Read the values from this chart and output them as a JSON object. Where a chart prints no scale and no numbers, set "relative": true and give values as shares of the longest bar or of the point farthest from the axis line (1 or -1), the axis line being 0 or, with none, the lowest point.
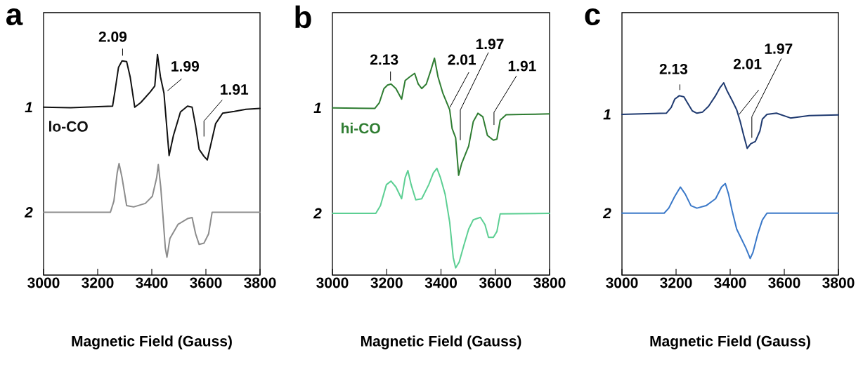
{
  "chart_data": [
    {
      "type": "line",
      "title": "a",
      "xlabel": "Magnetic Field (Gauss)",
      "xlim": [
        3000,
        3800
      ],
      "xticks": [
        3000,
        3200,
        3400,
        3600,
        3800
      ],
      "relative": true,
      "tick_labels": "x",
      "series": [
        {
          "name": "1",
          "color": "#111111",
          "x": [
            3000,
            3100,
            3255,
            3264,
            3277,
            3290,
            3307,
            3320,
            3337,
            3359,
            3394,
            3411,
            3421,
            3432,
            3445,
            3464,
            3480,
            3506,
            3532,
            3549,
            3562,
            3575,
            3593,
            3605,
            3618,
            3636,
            3662,
            3705,
            3748,
            3800
          ],
          "values": [
            0.761,
            0.759,
            0.766,
            0.835,
            0.942,
            0.971,
            0.968,
            0.899,
            0.761,
            0.782,
            0.83,
            0.857,
            1.0,
            0.899,
            0.825,
            0.542,
            0.633,
            0.74,
            0.766,
            0.761,
            0.676,
            0.57,
            0.538,
            0.522,
            0.591,
            0.687,
            0.734,
            0.742,
            0.752,
            0.756
          ]
        },
        {
          "name": "2",
          "color": "#8c8c8c",
          "x": [
            3000,
            3247,
            3260,
            3272,
            3279,
            3290,
            3307,
            3333,
            3376,
            3402,
            3418,
            3424,
            3433,
            3441,
            3450,
            3456,
            3467,
            3497,
            3532,
            3549,
            3562,
            3575,
            3593,
            3610,
            3623,
            3800
          ],
          "values": [
            0.285,
            0.285,
            0.336,
            0.463,
            0.506,
            0.442,
            0.315,
            0.309,
            0.325,
            0.357,
            0.442,
            0.501,
            0.4,
            0.272,
            0.123,
            0.081,
            0.166,
            0.23,
            0.256,
            0.261,
            0.187,
            0.139,
            0.145,
            0.187,
            0.285,
            0.285
          ]
        }
      ],
      "annotations": [
        "2.09",
        "1.99",
        "1.91",
        "lo-CO"
      ]
    },
    {
      "type": "line",
      "title": "b",
      "xlabel": "Magnetic Field (Gauss)",
      "xlim": [
        3000,
        3800
      ],
      "xticks": [
        3000,
        3200,
        3400,
        3600,
        3800
      ],
      "relative": true,
      "tick_labels": "x",
      "series": [
        {
          "name": "1",
          "color": "#2f7d32",
          "x": [
            3000,
            3156,
            3173,
            3190,
            3203,
            3216,
            3234,
            3255,
            3268,
            3285,
            3303,
            3316,
            3329,
            3346,
            3363,
            3376,
            3389,
            3407,
            3432,
            3441,
            3454,
            3465,
            3476,
            3502,
            3519,
            3536,
            3554,
            3571,
            3593,
            3606,
            3618,
            3640,
            3701,
            3800
          ],
          "values": [
            0.771,
            0.768,
            0.795,
            0.86,
            0.876,
            0.881,
            0.86,
            0.811,
            0.897,
            0.914,
            0.93,
            0.881,
            0.86,
            0.881,
            0.946,
            1.0,
            0.914,
            0.838,
            0.762,
            0.676,
            0.633,
            0.46,
            0.514,
            0.595,
            0.708,
            0.746,
            0.73,
            0.644,
            0.622,
            0.627,
            0.714,
            0.739,
            0.741,
            0.743
          ]
        },
        {
          "name": "2",
          "color": "#5ccf93",
          "x": [
            3000,
            3160,
            3177,
            3199,
            3216,
            3234,
            3255,
            3268,
            3278,
            3290,
            3307,
            3329,
            3355,
            3372,
            3385,
            3398,
            3415,
            3432,
            3445,
            3454,
            3467,
            3484,
            3502,
            3519,
            3545,
            3562,
            3575,
            3593,
            3606,
            3618,
            3800
          ],
          "values": [
            0.285,
            0.285,
            0.32,
            0.417,
            0.433,
            0.406,
            0.352,
            0.449,
            0.482,
            0.417,
            0.347,
            0.352,
            0.417,
            0.471,
            0.492,
            0.449,
            0.374,
            0.244,
            0.082,
            0.033,
            0.06,
            0.136,
            0.212,
            0.255,
            0.266,
            0.233,
            0.174,
            0.174,
            0.201,
            0.282,
            0.285
          ]
        }
      ],
      "annotations": [
        "2.13",
        "2.01",
        "1.97",
        "1.91",
        "hi-CO"
      ]
    },
    {
      "type": "line",
      "title": "c",
      "xlabel": "Magnetic Field (Gauss)",
      "xlim": [
        3000,
        3800
      ],
      "xticks": [
        3000,
        3200,
        3400,
        3600,
        3800
      ],
      "relative": true,
      "tick_labels": "x",
      "series": [
        {
          "name": "1",
          "color": "#1f3a70",
          "x": [
            3000,
            3164,
            3182,
            3195,
            3212,
            3229,
            3242,
            3260,
            3277,
            3298,
            3320,
            3346,
            3363,
            3376,
            3389,
            3407,
            3424,
            3437,
            3450,
            3463,
            3476,
            3493,
            3510,
            3519,
            3536,
            3571,
            3623,
            3692,
            3800
          ],
          "values": [
            0.836,
            0.842,
            0.872,
            0.915,
            0.933,
            0.927,
            0.896,
            0.854,
            0.842,
            0.848,
            0.878,
            0.933,
            0.976,
            1.0,
            0.957,
            0.909,
            0.86,
            0.799,
            0.726,
            0.659,
            0.683,
            0.695,
            0.75,
            0.811,
            0.836,
            0.842,
            0.817,
            0.829,
            0.833
          ]
        },
        {
          "name": "2",
          "color": "#3a78c8",
          "x": [
            3000,
            3156,
            3173,
            3195,
            3216,
            3234,
            3255,
            3277,
            3311,
            3346,
            3368,
            3382,
            3394,
            3407,
            3424,
            3441,
            3458,
            3474,
            3484,
            3502,
            3519,
            3536,
            3800
          ],
          "values": [
            0.322,
            0.322,
            0.348,
            0.409,
            0.458,
            0.421,
            0.361,
            0.348,
            0.361,
            0.397,
            0.458,
            0.476,
            0.421,
            0.336,
            0.239,
            0.19,
            0.141,
            0.086,
            0.117,
            0.214,
            0.287,
            0.322,
            0.322
          ]
        }
      ],
      "annotations": [
        "2.13",
        "2.01",
        "1.97"
      ]
    }
  ]
}
